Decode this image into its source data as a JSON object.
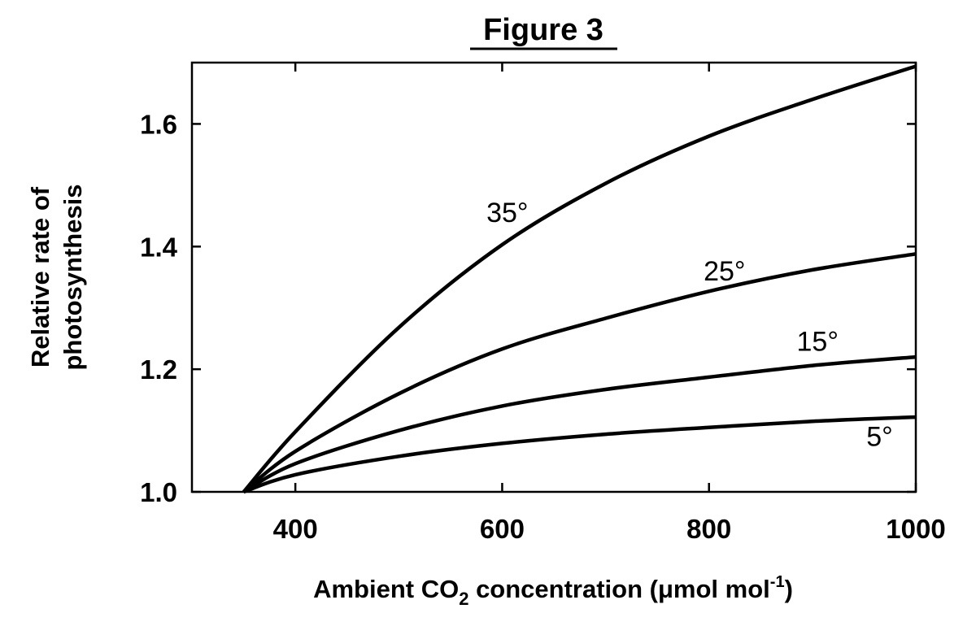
{
  "chart_data": {
    "type": "line",
    "title": "Figure 3",
    "xlabel": {
      "main": "Ambient CO",
      "sub": "2",
      "rest": " concentration (μmol mol",
      "sup": "-1",
      "end": ")"
    },
    "ylabel": [
      "Relative rate of",
      "photosynthesis"
    ],
    "xlim": [
      300,
      1000
    ],
    "ylim": [
      1.0,
      1.7
    ],
    "xticks": [
      400,
      600,
      800,
      1000
    ],
    "xtick_labels": [
      "400",
      "600",
      "800",
      "1000"
    ],
    "yticks": [
      1.0,
      1.2,
      1.4,
      1.6
    ],
    "ytick_labels": [
      "1.0",
      "1.2",
      "1.4",
      "1.6"
    ],
    "grid": false,
    "series": [
      {
        "name": "35°",
        "x": [
          350,
          400,
          500,
          600,
          700,
          800,
          900,
          1000
        ],
        "y": [
          1.0,
          1.098,
          1.268,
          1.403,
          1.503,
          1.58,
          1.64,
          1.694
        ]
      },
      {
        "name": "25°",
        "x": [
          350,
          400,
          500,
          600,
          700,
          800,
          900,
          1000
        ],
        "y": [
          1.0,
          1.066,
          1.16,
          1.233,
          1.283,
          1.327,
          1.362,
          1.388
        ]
      },
      {
        "name": "15°",
        "x": [
          350,
          400,
          500,
          600,
          700,
          800,
          900,
          1000
        ],
        "y": [
          1.0,
          1.046,
          1.1,
          1.14,
          1.167,
          1.187,
          1.206,
          1.22
        ]
      },
      {
        "name": "5°",
        "x": [
          350,
          400,
          500,
          600,
          700,
          800,
          900,
          1000
        ],
        "y": [
          1.0,
          1.028,
          1.058,
          1.079,
          1.094,
          1.105,
          1.115,
          1.122
        ]
      }
    ],
    "annotations": [
      {
        "text": "35°",
        "x": 605,
        "y": 1.44
      },
      {
        "text": "25°",
        "x": 815,
        "y": 1.345
      },
      {
        "text": "15°",
        "x": 905,
        "y": 1.23
      },
      {
        "text": "5°",
        "x": 965,
        "y": 1.075
      }
    ]
  }
}
